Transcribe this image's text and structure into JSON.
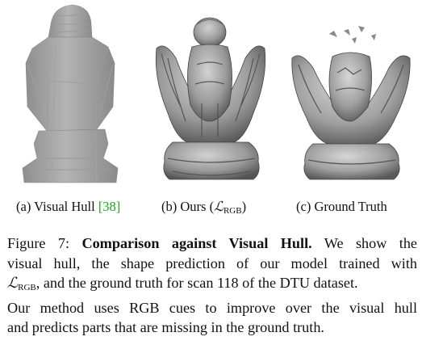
{
  "subfigures": [
    {
      "label": "(a) Visual Hull ",
      "cite": "[38]",
      "cite_close": ""
    },
    {
      "label_pre": "(b) Ours (",
      "math": "ℒ",
      "math_sub": "RGB",
      "label_post": ")"
    },
    {
      "label": "(c) Ground Truth"
    }
  ],
  "caption": {
    "figure_label": "Figure 7:",
    "bold_title": "Comparison against Visual Hull.",
    "line1_rest": "We show the",
    "line2": "visual hull, the shape prediction of our model trained with",
    "line3_math": "ℒ",
    "line3_math_sub": "RGB",
    "line3_rest": ", and the ground truth for scan 118 of the DTU dataset.",
    "line4": "Our method uses RGB cues to improve over the visual hull",
    "line5": "and predicts parts that are missing in the ground truth."
  },
  "colors": {
    "cite": "#1aa51a",
    "mesh_light": "#b9b9b9",
    "mesh_dark": "#6e6e6e"
  }
}
